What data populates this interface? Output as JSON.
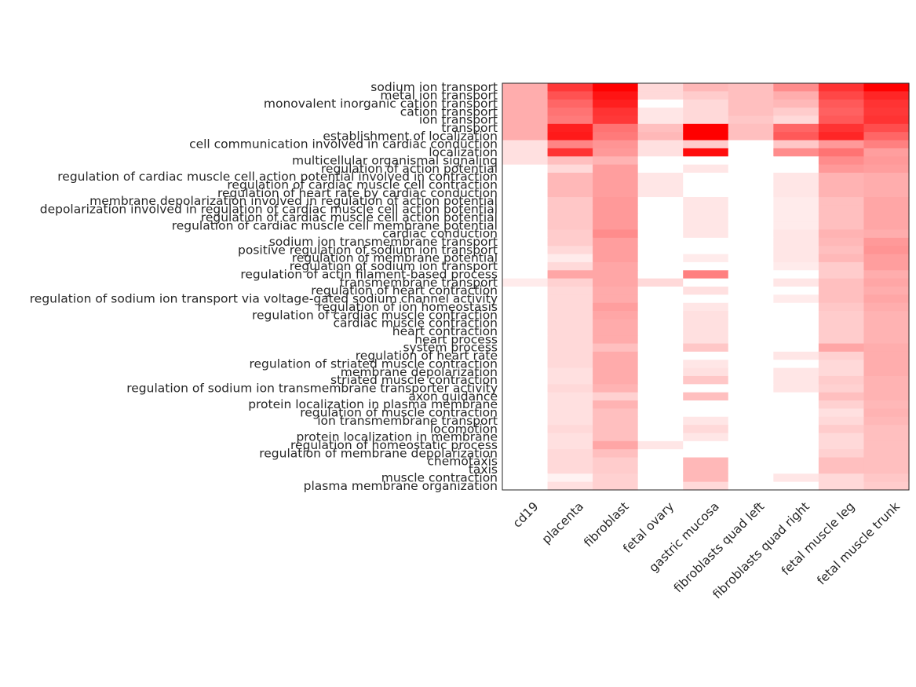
{
  "chart_data": {
    "type": "heatmap",
    "color_max": "#ff0000",
    "color_min": "#ffffff",
    "columns": [
      "cd19",
      "placenta",
      "fibroblast",
      "fetal ovary",
      "gastric mucosa",
      "fibroblasts quad left",
      "fibroblasts quad right",
      "fetal muscle leg",
      "fetal muscle trunk"
    ],
    "rows": [
      "sodium ion transport",
      "metal ion transport",
      "monovalent inorganic cation transport",
      "cation transport",
      "ion transport",
      "transport",
      "establishment of localization",
      "cell communication involved in cardiac conduction",
      "localization",
      "multicellular organismal signaling",
      "regulation of action potential",
      "regulation of cardiac muscle cell action potential involved in contraction",
      "regulation of cardiac muscle cell contraction",
      "regulation of heart rate by cardiac conduction",
      "membrane depolarization involved in regulation of action potential",
      "depolarization involved in regulation of cardiac muscle cell action potential",
      "regulation of cardiac muscle cell action potential",
      "regulation of cardiac muscle cell membrane potential",
      "cardiac conduction",
      "sodium ion transmembrane transport",
      "positive regulation of sodium ion transport",
      "regulation of membrane potential",
      "regulation of sodium ion transport",
      "regulation of actin filament-based process",
      "transmembrane transport",
      "regulation of heart contraction",
      "regulation of sodium ion transport via voltage-gated sodium channel activity",
      "regulation of ion homeostasis",
      "regulation of cardiac muscle contraction",
      "cardiac muscle contraction",
      "heart contraction",
      "heart process",
      "system process",
      "regulation of heart rate",
      "regulation of striated muscle contraction",
      "membrane depolarization",
      "striated muscle contraction",
      "regulation of sodium ion transmembrane transporter activity",
      "axon guidance",
      "protein localization in plasma membrane",
      "regulation of muscle contraction",
      "ion transmembrane transport",
      "locomotion",
      "protein localization in membrane",
      "regulation of homeostatic process",
      "regulation of membrane depolarization",
      "chemotaxis",
      "taxis",
      "muscle contraction",
      "plasma membrane organization"
    ],
    "values": [
      [
        0.32,
        0.78,
        1.0,
        0.15,
        0.28,
        0.25,
        0.45,
        0.8,
        1.0
      ],
      [
        0.32,
        0.68,
        0.92,
        0.15,
        0.2,
        0.25,
        0.32,
        0.72,
        0.85
      ],
      [
        0.32,
        0.6,
        0.88,
        0.0,
        0.15,
        0.25,
        0.28,
        0.65,
        0.8
      ],
      [
        0.32,
        0.55,
        0.8,
        0.1,
        0.15,
        0.25,
        0.2,
        0.62,
        0.78
      ],
      [
        0.32,
        0.52,
        0.78,
        0.1,
        0.15,
        0.22,
        0.15,
        0.65,
        0.8
      ],
      [
        0.32,
        0.88,
        0.55,
        0.25,
        1.0,
        0.25,
        0.6,
        0.8,
        0.7
      ],
      [
        0.32,
        0.9,
        0.52,
        0.28,
        1.0,
        0.25,
        0.65,
        0.85,
        0.6
      ],
      [
        0.12,
        0.48,
        0.42,
        0.12,
        0.2,
        0.0,
        0.22,
        0.4,
        0.5
      ],
      [
        0.12,
        0.8,
        0.4,
        0.12,
        0.95,
        0.0,
        0.45,
        0.55,
        0.38
      ],
      [
        0.12,
        0.25,
        0.3,
        0.0,
        0.0,
        0.0,
        0.0,
        0.45,
        0.4
      ],
      [
        0.0,
        0.15,
        0.38,
        0.0,
        0.1,
        0.0,
        0.0,
        0.4,
        0.38
      ],
      [
        0.0,
        0.28,
        0.38,
        0.1,
        0.0,
        0.0,
        0.1,
        0.3,
        0.32
      ],
      [
        0.0,
        0.28,
        0.38,
        0.1,
        0.0,
        0.0,
        0.1,
        0.3,
        0.32
      ],
      [
        0.0,
        0.28,
        0.38,
        0.1,
        0.0,
        0.0,
        0.1,
        0.3,
        0.32
      ],
      [
        0.0,
        0.22,
        0.4,
        0.0,
        0.1,
        0.0,
        0.08,
        0.25,
        0.35
      ],
      [
        0.0,
        0.22,
        0.4,
        0.0,
        0.1,
        0.0,
        0.08,
        0.25,
        0.35
      ],
      [
        0.0,
        0.22,
        0.4,
        0.0,
        0.1,
        0.0,
        0.08,
        0.25,
        0.35
      ],
      [
        0.0,
        0.22,
        0.4,
        0.0,
        0.1,
        0.0,
        0.08,
        0.25,
        0.35
      ],
      [
        0.0,
        0.2,
        0.45,
        0.0,
        0.1,
        0.0,
        0.1,
        0.3,
        0.32
      ],
      [
        0.0,
        0.2,
        0.38,
        0.0,
        0.0,
        0.0,
        0.1,
        0.28,
        0.4
      ],
      [
        0.0,
        0.15,
        0.38,
        0.0,
        0.0,
        0.0,
        0.1,
        0.25,
        0.42
      ],
      [
        0.0,
        0.08,
        0.38,
        0.0,
        0.08,
        0.0,
        0.1,
        0.28,
        0.38
      ],
      [
        0.0,
        0.15,
        0.35,
        0.0,
        0.0,
        0.0,
        0.08,
        0.2,
        0.38
      ],
      [
        0.0,
        0.35,
        0.35,
        0.0,
        0.5,
        0.0,
        0.0,
        0.2,
        0.32
      ],
      [
        0.08,
        0.18,
        0.35,
        0.15,
        0.0,
        0.0,
        0.1,
        0.25,
        0.35
      ],
      [
        0.0,
        0.15,
        0.33,
        0.0,
        0.12,
        0.0,
        0.0,
        0.25,
        0.32
      ],
      [
        0.0,
        0.15,
        0.33,
        0.0,
        0.0,
        0.0,
        0.08,
        0.25,
        0.35
      ],
      [
        0.0,
        0.15,
        0.38,
        0.0,
        0.1,
        0.0,
        0.0,
        0.22,
        0.32
      ],
      [
        0.0,
        0.15,
        0.35,
        0.0,
        0.12,
        0.0,
        0.0,
        0.2,
        0.3
      ],
      [
        0.0,
        0.15,
        0.33,
        0.0,
        0.12,
        0.0,
        0.0,
        0.2,
        0.3
      ],
      [
        0.0,
        0.15,
        0.33,
        0.0,
        0.12,
        0.0,
        0.0,
        0.2,
        0.3
      ],
      [
        0.0,
        0.15,
        0.33,
        0.0,
        0.12,
        0.0,
        0.0,
        0.2,
        0.3
      ],
      [
        0.0,
        0.15,
        0.25,
        0.0,
        0.22,
        0.0,
        0.0,
        0.35,
        0.32
      ],
      [
        0.0,
        0.15,
        0.33,
        0.0,
        0.0,
        0.0,
        0.1,
        0.18,
        0.32
      ],
      [
        0.0,
        0.15,
        0.33,
        0.0,
        0.1,
        0.0,
        0.0,
        0.15,
        0.32
      ],
      [
        0.0,
        0.12,
        0.33,
        0.0,
        0.12,
        0.0,
        0.1,
        0.15,
        0.32
      ],
      [
        0.0,
        0.12,
        0.33,
        0.0,
        0.22,
        0.0,
        0.1,
        0.2,
        0.3
      ],
      [
        0.0,
        0.15,
        0.3,
        0.0,
        0.0,
        0.0,
        0.1,
        0.18,
        0.3
      ],
      [
        0.0,
        0.12,
        0.18,
        0.0,
        0.25,
        0.0,
        0.0,
        0.25,
        0.3
      ],
      [
        0.0,
        0.12,
        0.3,
        0.0,
        0.0,
        0.0,
        0.0,
        0.18,
        0.28
      ],
      [
        0.0,
        0.12,
        0.25,
        0.0,
        0.0,
        0.0,
        0.0,
        0.12,
        0.3
      ],
      [
        0.0,
        0.12,
        0.25,
        0.0,
        0.1,
        0.0,
        0.0,
        0.15,
        0.28
      ],
      [
        0.0,
        0.15,
        0.25,
        0.0,
        0.15,
        0.0,
        0.0,
        0.2,
        0.25
      ],
      [
        0.0,
        0.12,
        0.25,
        0.0,
        0.1,
        0.0,
        0.0,
        0.15,
        0.25
      ],
      [
        0.0,
        0.12,
        0.35,
        0.1,
        0.0,
        0.0,
        0.0,
        0.15,
        0.25
      ],
      [
        0.0,
        0.15,
        0.25,
        0.0,
        0.0,
        0.0,
        0.0,
        0.18,
        0.25
      ],
      [
        0.0,
        0.15,
        0.2,
        0.0,
        0.28,
        0.0,
        0.0,
        0.25,
        0.25
      ],
      [
        0.0,
        0.15,
        0.2,
        0.0,
        0.28,
        0.0,
        0.0,
        0.25,
        0.25
      ],
      [
        0.0,
        0.05,
        0.18,
        0.0,
        0.28,
        0.0,
        0.1,
        0.15,
        0.22
      ],
      [
        0.0,
        0.12,
        0.18,
        0.0,
        0.15,
        0.0,
        0.0,
        0.15,
        0.2
      ]
    ]
  }
}
